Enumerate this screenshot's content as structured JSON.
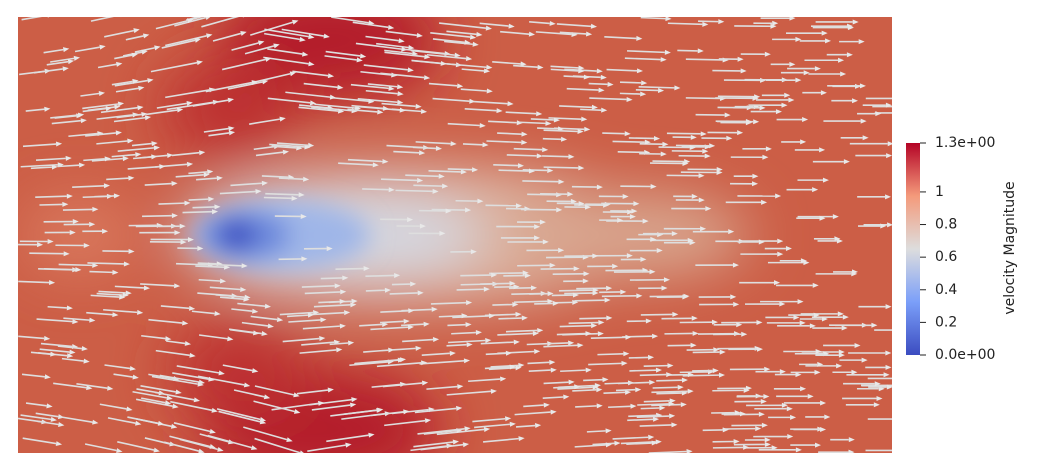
{
  "colorbar": {
    "title": "velocity Magnitude",
    "range": [
      0,
      1.3
    ],
    "ticks": [
      {
        "value": 1.3,
        "label": "1.3e+00"
      },
      1,
      0.8,
      0.6,
      0.4,
      0.2,
      {
        "value": 0,
        "label": "0.0e+00"
      }
    ]
  }
}
